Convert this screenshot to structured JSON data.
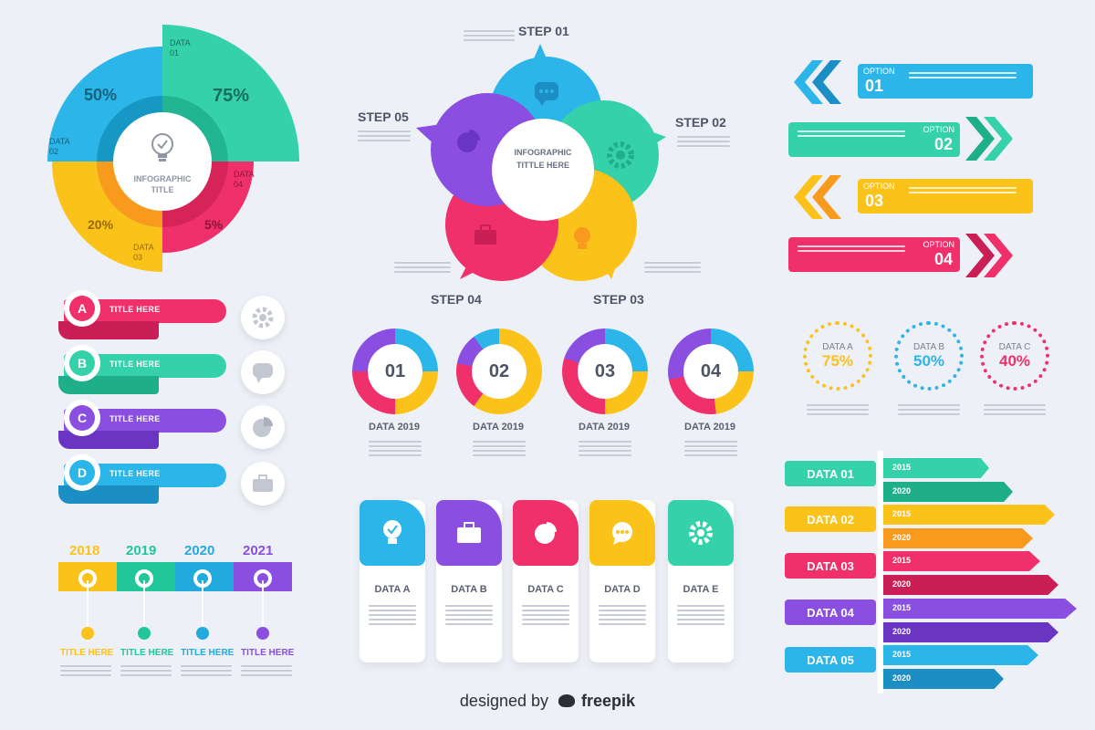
{
  "colors": {
    "cyan": "#2bb5e8",
    "teal": "#34d1aa",
    "pink": "#f0306a",
    "yellow": "#fbc21a",
    "purple": "#8a4fe0",
    "orange": "#f79a1e",
    "green": "#22c69b",
    "blue": "#22a9de"
  },
  "pie": {
    "center_title": "INFOGRAPHIC\nTITLE",
    "center_icon": "lightbulb-check-icon",
    "segments": [
      {
        "label": "DATA\n01",
        "value": "75%",
        "color": "#34d1aa"
      },
      {
        "label": "DATA\n02",
        "value": "50%",
        "color": "#2bb5e8"
      },
      {
        "label": "DATA\n03",
        "value": "20%",
        "color": "#fbc21a"
      },
      {
        "label": "DATA\n04",
        "value": "5%",
        "color": "#f0306a"
      }
    ]
  },
  "steps": {
    "center": "INFOGRAPHIC\nTITTLE HERE",
    "items": [
      {
        "label": "STEP 01",
        "icon": "chat-icon",
        "color": "#2bb5e8"
      },
      {
        "label": "STEP 02",
        "icon": "gear-icon",
        "color": "#34d1aa"
      },
      {
        "label": "STEP 03",
        "icon": "lightbulb-icon",
        "color": "#fbc21a"
      },
      {
        "label": "STEP 04",
        "icon": "briefcase-icon",
        "color": "#f0306a"
      },
      {
        "label": "STEP 05",
        "icon": "pie-chart-icon",
        "color": "#8a4fe0"
      }
    ]
  },
  "options": [
    {
      "label": "OPTION",
      "number": "01",
      "color": "#2bb5e8"
    },
    {
      "label": "OPTION",
      "number": "02",
      "color": "#34d1aa"
    },
    {
      "label": "OPTION",
      "number": "03",
      "color": "#fbc21a"
    },
    {
      "label": "OPTION",
      "number": "04",
      "color": "#f0306a"
    }
  ],
  "list": [
    {
      "letter": "A",
      "title": "TITLE HERE",
      "icon": "gear-icon",
      "color": "#f0306a"
    },
    {
      "letter": "B",
      "title": "TITLE HERE",
      "icon": "chat-icon",
      "color": "#34d1aa"
    },
    {
      "letter": "C",
      "title": "TITLE HERE",
      "icon": "pie-chart-icon",
      "color": "#8a4fe0"
    },
    {
      "letter": "D",
      "title": "TITLE HERE",
      "icon": "briefcase-icon",
      "color": "#2bb5e8"
    }
  ],
  "donuts": [
    {
      "number": "01",
      "caption": "DATA 2019"
    },
    {
      "number": "02",
      "caption": "DATA 2019"
    },
    {
      "number": "03",
      "caption": "DATA 2019"
    },
    {
      "number": "04",
      "caption": "DATA 2019"
    }
  ],
  "rings": [
    {
      "label": "DATA A",
      "value": "75%",
      "color": "#fbc21a"
    },
    {
      "label": "DATA B",
      "value": "50%",
      "color": "#2bb5e8"
    },
    {
      "label": "DATA C",
      "value": "40%",
      "color": "#f0306a"
    }
  ],
  "timeline": [
    {
      "year": "2018",
      "title": "TITLE HERE",
      "color": "#fbc21a"
    },
    {
      "year": "2019",
      "title": "TITLE HERE",
      "color": "#22c69b"
    },
    {
      "year": "2020",
      "title": "TITLE HERE",
      "color": "#22a9de"
    },
    {
      "year": "2021",
      "title": "TITLE HERE",
      "color": "#8a4fe0"
    }
  ],
  "cards": [
    {
      "label": "DATA A",
      "icon": "lightbulb-icon",
      "color": "#2bb5e8"
    },
    {
      "label": "DATA B",
      "icon": "briefcase-icon",
      "color": "#8a4fe0"
    },
    {
      "label": "DATA C",
      "icon": "pie-chart-icon",
      "color": "#f0306a"
    },
    {
      "label": "DATA D",
      "icon": "chat-icon",
      "color": "#fbc21a"
    },
    {
      "label": "DATA E",
      "icon": "gear-icon",
      "color": "#34d1aa"
    }
  ],
  "bars": [
    {
      "label": "DATA 01",
      "color": "#34d1aa",
      "dark": "#1fae8a",
      "years": [
        "2015",
        "2020"
      ]
    },
    {
      "label": "DATA 02",
      "color": "#fbc21a",
      "dark": "#f79a1e",
      "years": [
        "2015",
        "2020"
      ]
    },
    {
      "label": "DATA 03",
      "color": "#f0306a",
      "dark": "#c91f56",
      "years": [
        "2015",
        "2020"
      ]
    },
    {
      "label": "DATA 04",
      "color": "#8a4fe0",
      "dark": "#6b35c4",
      "years": [
        "2015",
        "2020"
      ]
    },
    {
      "label": "DATA 05",
      "color": "#2bb5e8",
      "dark": "#1b8fc4",
      "years": [
        "2015",
        "2020"
      ]
    }
  ],
  "footer": {
    "prefix": "designed by",
    "brand": "freepik",
    "brand_icon": "freepik-logo-icon"
  }
}
